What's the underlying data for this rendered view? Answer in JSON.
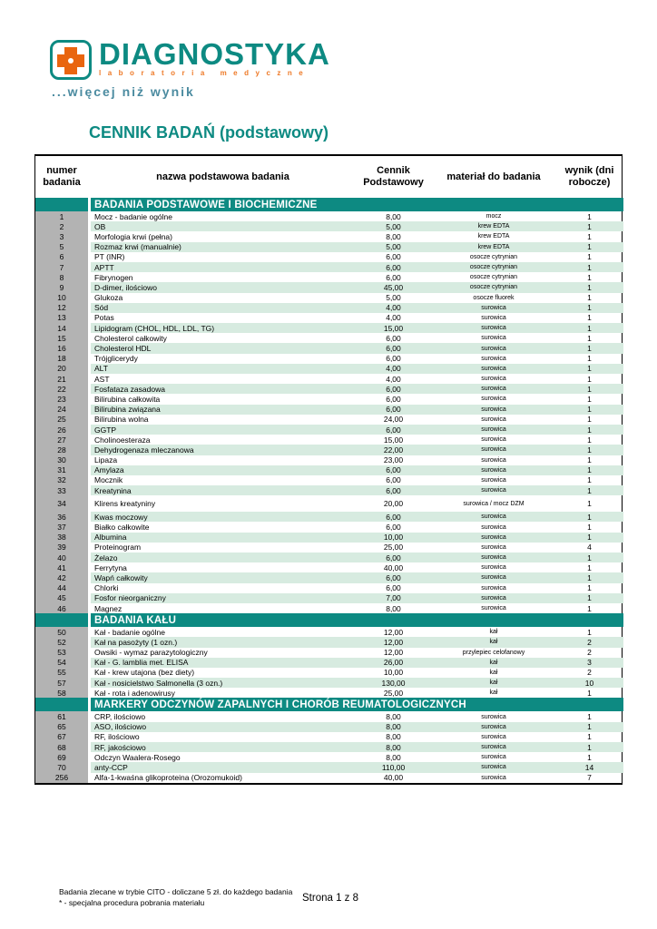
{
  "logo": {
    "brand": "DIAGNOSTYKA",
    "subtitle": "laboratoria medyczne",
    "tagline": "...więcej niż wynik",
    "colors": {
      "teal": "#0d8a82",
      "orange": "#e9650f",
      "tagline_blue": "#4b8ba0"
    }
  },
  "title": "CENNIK BADAŃ (podstawowy)",
  "table": {
    "columns": [
      "numer badania",
      "nazwa podstawowa badania",
      "Cennik Podstawowy",
      "materiał do badania",
      "wynik (dni robocze)"
    ],
    "colors": {
      "section_bar": "#0d8a82",
      "zebra_green": "#d7ebe0",
      "number_column_gray": "#b3b3b3"
    },
    "sections": [
      {
        "header": "BADANIA PODSTAWOWE I BIOCHEMICZNE",
        "rows": [
          [
            "1",
            "Mocz - badanie ogólne",
            "8,00",
            "mocz",
            "1"
          ],
          [
            "2",
            "OB",
            "5,00",
            "krew EDTA",
            "1"
          ],
          [
            "3",
            "Morfologia krwi (pełna)",
            "8,00",
            "krew EDTA",
            "1"
          ],
          [
            "5",
            "Rozmaz krwi (manualnie)",
            "5,00",
            "krew EDTA",
            "1"
          ],
          [
            "6",
            "PT (INR)",
            "6,00",
            "osocze cytrynian",
            "1"
          ],
          [
            "7",
            "APTT",
            "6,00",
            "osocze cytrynian",
            "1"
          ],
          [
            "8",
            "Fibrynogen",
            "6,00",
            "osocze cytrynian",
            "1"
          ],
          [
            "9",
            "D-dimer, ilościowo",
            "45,00",
            "osocze cytrynian",
            "1"
          ],
          [
            "10",
            "Glukoza",
            "5,00",
            "osocze fluorek",
            "1"
          ],
          [
            "12",
            "Sód",
            "4,00",
            "surowica",
            "1"
          ],
          [
            "13",
            "Potas",
            "4,00",
            "surowica",
            "1"
          ],
          [
            "14",
            "Lipidogram (CHOL, HDL, LDL, TG)",
            "15,00",
            "surowica",
            "1"
          ],
          [
            "15",
            "Cholesterol całkowity",
            "6,00",
            "surowica",
            "1"
          ],
          [
            "16",
            "Cholesterol HDL",
            "6,00",
            "surowica",
            "1"
          ],
          [
            "18",
            "Trójglicerydy",
            "6,00",
            "surowica",
            "1"
          ],
          [
            "20",
            "ALT",
            "4,00",
            "surowica",
            "1"
          ],
          [
            "21",
            "AST",
            "4,00",
            "surowica",
            "1"
          ],
          [
            "22",
            "Fosfataza zasadowa",
            "6,00",
            "surowica",
            "1"
          ],
          [
            "23",
            "Bilirubina całkowita",
            "6,00",
            "surowica",
            "1"
          ],
          [
            "24",
            "Bilirubina związana",
            "6,00",
            "surowica",
            "1"
          ],
          [
            "25",
            "Bilirubina wolna",
            "24,00",
            "surowica",
            "1"
          ],
          [
            "26",
            "GGTP",
            "6,00",
            "surowica",
            "1"
          ],
          [
            "27",
            "Cholinoesteraza",
            "15,00",
            "surowica",
            "1"
          ],
          [
            "28",
            "Dehydrogenaza mleczanowa",
            "22,00",
            "surowica",
            "1"
          ],
          [
            "30",
            "Lipaza",
            "23,00",
            "surowica",
            "1"
          ],
          [
            "31",
            "Amylaza",
            "6,00",
            "surowica",
            "1"
          ],
          [
            "32",
            "Mocznik",
            "6,00",
            "surowica",
            "1"
          ],
          [
            "33",
            "Kreatynina",
            "6,00",
            "surowica",
            "1"
          ],
          [
            "34",
            "Klirens kreatyniny",
            "20,00",
            "surowica / mocz DZM",
            "1"
          ],
          [
            "36",
            "Kwas moczowy",
            "6,00",
            "surowica",
            "1"
          ],
          [
            "37",
            "Białko całkowite",
            "6,00",
            "surowica",
            "1"
          ],
          [
            "38",
            "Albumina",
            "10,00",
            "surowica",
            "1"
          ],
          [
            "39",
            "Proteinogram",
            "25,00",
            "surowica",
            "4"
          ],
          [
            "40",
            "Żelazo",
            "6,00",
            "surowica",
            "1"
          ],
          [
            "41",
            "Ferrytyna",
            "40,00",
            "surowica",
            "1"
          ],
          [
            "42",
            "Wapń całkowity",
            "6,00",
            "surowica",
            "1"
          ],
          [
            "44",
            "Chlorki",
            "6,00",
            "surowica",
            "1"
          ],
          [
            "45",
            "Fosfor nieorganiczny",
            "7,00",
            "surowica",
            "1"
          ],
          [
            "46",
            "Magnez",
            "8,00",
            "surowica",
            "1"
          ]
        ],
        "tall_rows": [
          "34"
        ]
      },
      {
        "header": "BADANIA KAŁU",
        "rows": [
          [
            "50",
            "Kał - badanie ogólne",
            "12,00",
            "kał",
            "1"
          ],
          [
            "52",
            "Kał na pasożyty (1 ozn.)",
            "12,00",
            "kał",
            "2"
          ],
          [
            "53",
            "Owsiki - wymaz parazytologiczny",
            "12,00",
            "przylepiec celofanowy",
            "2"
          ],
          [
            "54",
            "Kał - G. lamblia met. ELISA",
            "26,00",
            "kał",
            "3"
          ],
          [
            "55",
            "Kał - krew utajona (bez diety)",
            "10,00",
            "kał",
            "2"
          ],
          [
            "57",
            "Kał - nosicielstwo Salmonella (3 ozn.)",
            "130,00",
            "kał",
            "10"
          ],
          [
            "58",
            "Kał - rota i adenowirusy",
            "25,00",
            "kał",
            "1"
          ]
        ],
        "tall_rows": []
      },
      {
        "header": "MARKERY ODCZYNÓW ZAPALNYCH I CHORÓB REUMATOLOGICZNYCH",
        "rows": [
          [
            "61",
            "CRP, ilościowo",
            "8,00",
            "surowica",
            "1"
          ],
          [
            "65",
            "ASO, ilościowo",
            "8,00",
            "surowica",
            "1"
          ],
          [
            "67",
            "RF, ilościowo",
            "8,00",
            "surowica",
            "1"
          ],
          [
            "68",
            "RF, jakościowo",
            "8,00",
            "surowica",
            "1"
          ],
          [
            "69",
            "Odczyn Waalera-Rosego",
            "8,00",
            "surowica",
            "1"
          ],
          [
            "70",
            "anty-CCP",
            "110,00",
            "surowica",
            "14"
          ],
          [
            "256",
            "Alfa-1-kwaśna glikoproteina (Orozomukoid)",
            "40,00",
            "surowica",
            "7"
          ]
        ],
        "tall_rows": []
      }
    ]
  },
  "footer": {
    "note1": "Badania zlecane w trybie CITO - doliczane 5 zł. do każdego badania",
    "note2": "* - specjalna procedura pobrania materiału",
    "page": "Strona 1 z 8"
  }
}
